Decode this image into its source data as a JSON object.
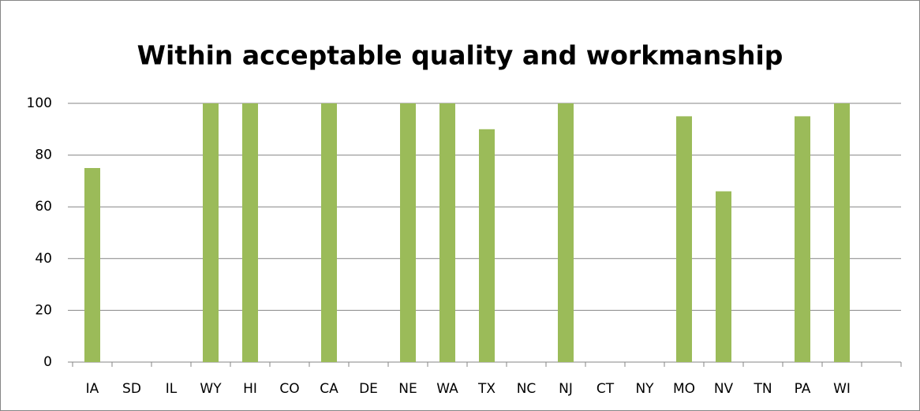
{
  "chart_data": {
    "type": "bar",
    "title": "Within acceptable quality and workmanship",
    "categories": [
      "IA",
      "SD",
      "IL",
      "WY",
      "HI",
      "CO",
      "CA",
      "DE",
      "NE",
      "WA",
      "TX",
      "NC",
      "NJ",
      "CT",
      "NY",
      "MO",
      "NV",
      "TN",
      "PA",
      "WI",
      null
    ],
    "values": [
      75,
      null,
      null,
      100,
      100,
      null,
      100,
      null,
      100,
      100,
      90,
      null,
      100,
      null,
      null,
      95,
      66,
      null,
      95,
      100,
      null
    ],
    "color": "#9bbb59",
    "ylim": [
      0,
      100
    ],
    "yticks": [
      0,
      20,
      40,
      60,
      80,
      100
    ],
    "grid": true
  }
}
